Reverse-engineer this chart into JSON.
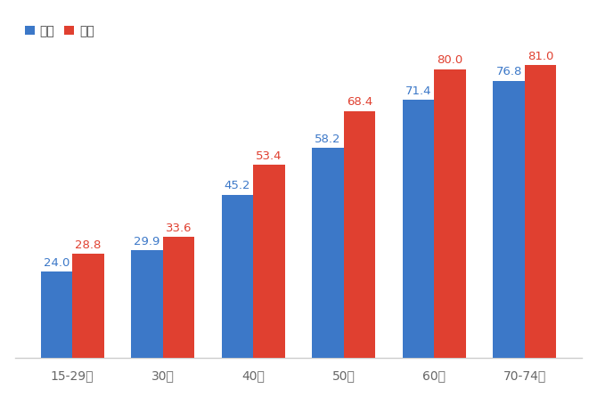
{
  "categories": [
    "15-29歳",
    "30代",
    "40代",
    "50代",
    "60代",
    "70-74歳"
  ],
  "male_values": [
    24.0,
    29.9,
    45.2,
    58.2,
    71.4,
    76.8
  ],
  "female_values": [
    28.8,
    33.6,
    53.4,
    68.4,
    80.0,
    81.0
  ],
  "male_color": "#3C78C8",
  "female_color": "#E04030",
  "legend_male": "男性",
  "legend_female": "女性",
  "background_color": "#ffffff",
  "ylim": [
    0,
    95
  ],
  "bar_width": 0.35,
  "label_fontsize": 9.5,
  "tick_fontsize": 10,
  "legend_fontsize": 10,
  "spine_color": "#cccccc",
  "tick_color": "#666666"
}
